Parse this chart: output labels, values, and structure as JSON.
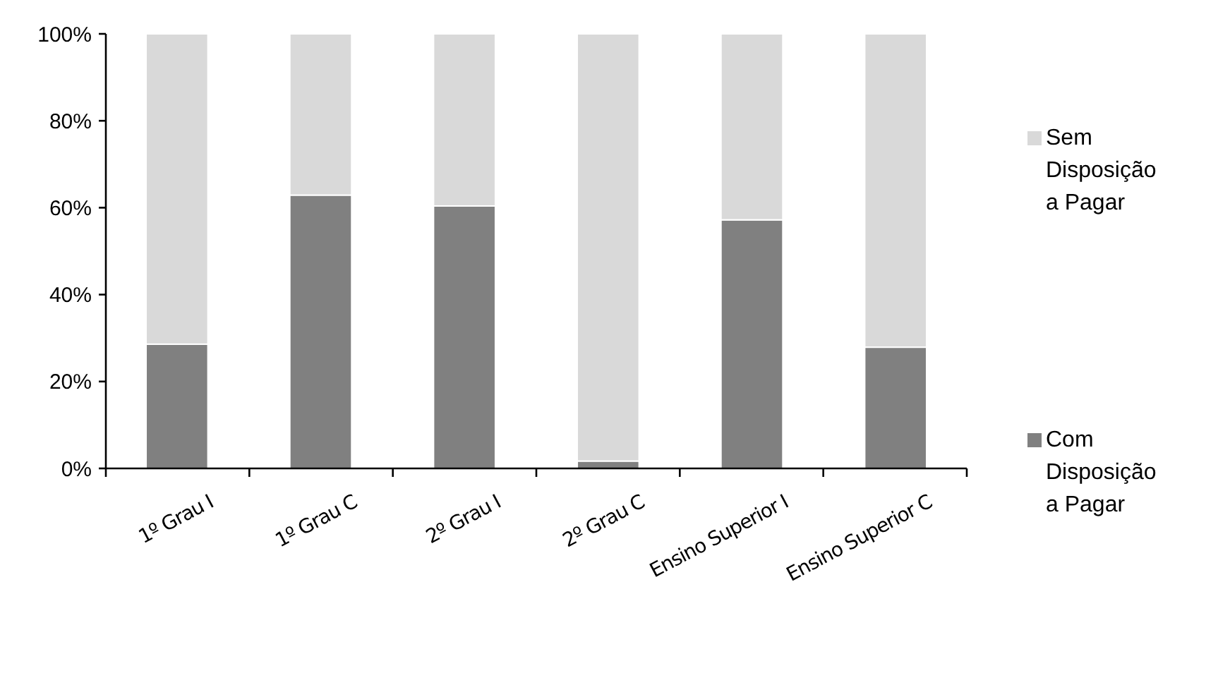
{
  "chart_data": {
    "type": "bar",
    "stacked": true,
    "categories": [
      "1º Grau I",
      "1º Grau C",
      "2º Grau I",
      "2º Grau C",
      "Ensino Superior I",
      "Ensino Superior C"
    ],
    "series": [
      {
        "name": "Com Disposição a Pagar",
        "color": "#808080",
        "values": [
          28.6,
          62.9,
          60.4,
          1.7,
          57.2,
          27.9
        ]
      },
      {
        "name": "Sem Disposição a Pagar",
        "color": "#d9d9d9",
        "values": [
          71.4,
          37.1,
          39.6,
          98.3,
          42.8,
          72.1
        ]
      }
    ],
    "ylim": [
      0,
      100
    ],
    "yticks": [
      {
        "value": 0,
        "label": "0%"
      },
      {
        "value": 20,
        "label": "20%"
      },
      {
        "value": 40,
        "label": "40%"
      },
      {
        "value": 60,
        "label": "60%"
      },
      {
        "value": 80,
        "label": "80%"
      },
      {
        "value": 100,
        "label": "100%"
      }
    ],
    "legend": "right"
  }
}
